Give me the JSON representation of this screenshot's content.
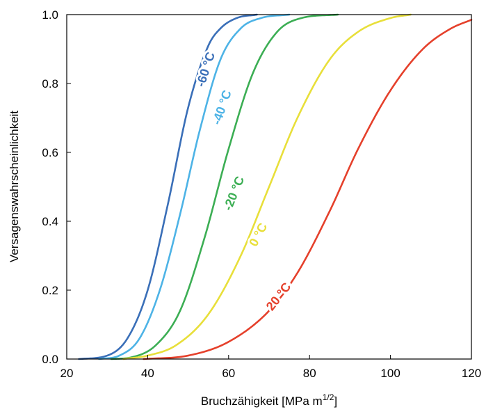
{
  "chart_data": {
    "type": "line",
    "title": "",
    "xlabel": "Bruchzähigkeit [MPa m",
    "xlabel_sup": "1/2",
    "xlabel_end": "]",
    "ylabel": "Versagenswahrscheinlichkeit",
    "xlim": [
      20,
      120
    ],
    "ylim": [
      0,
      1
    ],
    "x_ticks": [
      20,
      40,
      60,
      80,
      100,
      120
    ],
    "x_tick_labels": [
      "20",
      "40",
      "60",
      "80",
      "100",
      "120"
    ],
    "y_ticks": [
      0,
      0.2,
      0.4,
      0.6,
      0.8,
      1.0
    ],
    "y_tick_labels": [
      "0.0",
      "0.2",
      "0.4",
      "0.6",
      "0.8",
      "1.0"
    ],
    "grid": false,
    "legend": "none",
    "series": [
      {
        "name": "-60 °C",
        "color": "#3a6fb8",
        "x": [
          23,
          30,
          35,
          40,
          45,
          50,
          55,
          58,
          62,
          67
        ],
        "y": [
          0.0,
          0.01,
          0.06,
          0.2,
          0.45,
          0.73,
          0.91,
          0.96,
          0.99,
          1.0
        ]
      },
      {
        "name": "-40 °C",
        "color": "#4db3e6",
        "x": [
          28,
          33,
          38,
          43,
          48,
          53,
          58,
          63,
          68,
          75
        ],
        "y": [
          0.0,
          0.01,
          0.06,
          0.2,
          0.42,
          0.67,
          0.87,
          0.96,
          0.99,
          1.0
        ]
      },
      {
        "name": "-20 °C",
        "color": "#3cae54",
        "x": [
          31,
          36,
          42,
          48,
          54,
          60,
          66,
          72,
          78,
          87
        ],
        "y": [
          0.0,
          0.005,
          0.04,
          0.14,
          0.35,
          0.61,
          0.83,
          0.95,
          0.99,
          1.0
        ]
      },
      {
        "name": "0 °C",
        "color": "#e8df3a",
        "x": [
          34,
          40,
          47,
          55,
          63,
          70,
          77,
          85,
          92,
          100,
          105
        ],
        "y": [
          0.0,
          0.01,
          0.04,
          0.13,
          0.3,
          0.5,
          0.7,
          0.87,
          0.95,
          0.99,
          1.0
        ]
      },
      {
        "name": "20 °C",
        "color": "#e5402b",
        "x": [
          39,
          50,
          60,
          70,
          77,
          85,
          92,
          100,
          108,
          115,
          120
        ],
        "y": [
          0.0,
          0.01,
          0.05,
          0.14,
          0.25,
          0.43,
          0.61,
          0.78,
          0.9,
          0.96,
          0.985
        ]
      }
    ],
    "curve_labels": [
      {
        "text": "-60 °C",
        "x": 54.5,
        "y": 0.84,
        "angle": -72
      },
      {
        "text": "-40 °C",
        "x": 58.5,
        "y": 0.73,
        "angle": -71
      },
      {
        "text": "-20 °C",
        "x": 61.5,
        "y": 0.48,
        "angle": -68
      },
      {
        "text": "0 °C",
        "x": 67.5,
        "y": 0.36,
        "angle": -62
      },
      {
        "text": "20 °C",
        "x": 72.5,
        "y": 0.18,
        "angle": -52
      }
    ]
  }
}
